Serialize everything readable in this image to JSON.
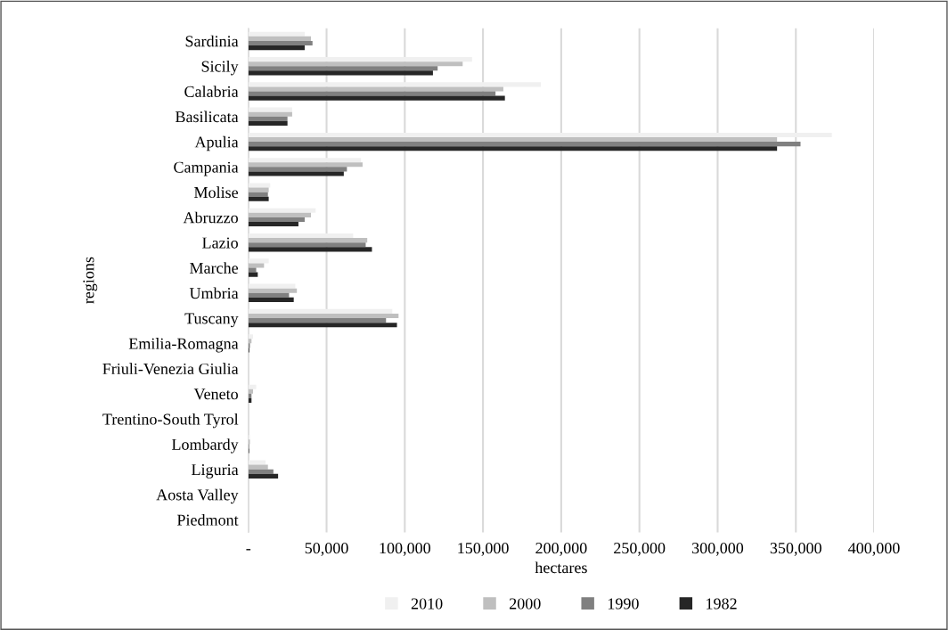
{
  "chart_data": {
    "type": "bar",
    "orientation": "horizontal",
    "xlabel": "hectares",
    "ylabel": "regions",
    "categories": [
      "Sardinia",
      "Sicily",
      "Calabria",
      "Basilicata",
      "Apulia",
      "Campania",
      "Molise",
      "Abruzzo",
      "Lazio",
      "Marche",
      "Umbria",
      "Tuscany",
      "Emilia-Romagna",
      "Friuli-Venezia Giulia",
      "Veneto",
      "Trentino-South Tyrol",
      "Lombardy",
      "Liguria",
      "Aosta Valley",
      "Piedmont"
    ],
    "series": [
      {
        "name": "2010",
        "color": "#f0f0f0",
        "values": [
          36000,
          143000,
          187000,
          28000,
          373000,
          72000,
          14000,
          43000,
          67000,
          13000,
          30000,
          92000,
          3000,
          0,
          5000,
          0,
          1000,
          11000,
          0,
          0
        ]
      },
      {
        "name": "2000",
        "color": "#bfbfbf",
        "values": [
          40000,
          137000,
          163000,
          28000,
          338000,
          73000,
          13000,
          40000,
          76000,
          10000,
          31000,
          96000,
          2000,
          0,
          3000,
          0,
          1000,
          12500,
          0,
          0
        ]
      },
      {
        "name": "1990",
        "color": "#808080",
        "values": [
          41000,
          121000,
          158000,
          25000,
          353000,
          63000,
          12500,
          36000,
          75000,
          5000,
          26000,
          88000,
          1000,
          0,
          2000,
          0,
          500,
          16000,
          0,
          0
        ]
      },
      {
        "name": "1982",
        "color": "#262626",
        "values": [
          36000,
          118000,
          164000,
          25000,
          338000,
          61000,
          13000,
          32000,
          79000,
          6000,
          29000,
          95000,
          600,
          0,
          2000,
          0,
          500,
          19000,
          0,
          0
        ]
      }
    ],
    "xlim": [
      0,
      400000
    ],
    "xticks": [
      {
        "value": 0,
        "label": "-"
      },
      {
        "value": 50000,
        "label": "50,000"
      },
      {
        "value": 100000,
        "label": "100,000"
      },
      {
        "value": 150000,
        "label": "150,000"
      },
      {
        "value": 200000,
        "label": "200,000"
      },
      {
        "value": 250000,
        "label": "250,000"
      },
      {
        "value": 300000,
        "label": "300,000"
      },
      {
        "value": 350000,
        "label": "350,000"
      },
      {
        "value": 400000,
        "label": "400,000"
      }
    ],
    "grid": "x",
    "legend": "bottom"
  }
}
